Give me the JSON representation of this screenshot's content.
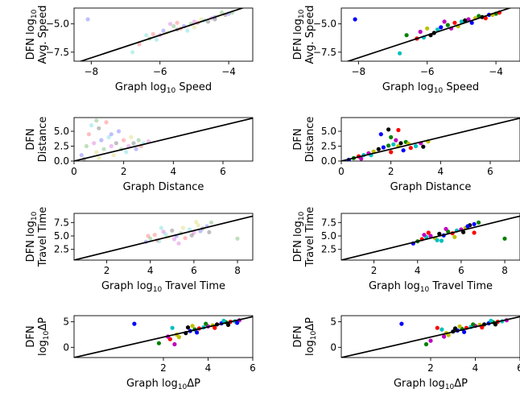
{
  "figure": {
    "background": "#ffffff",
    "point_colors": [
      "#0000ff",
      "#008000",
      "#ff0000",
      "#00bfbf",
      "#bf00bf",
      "#bfbf00",
      "#000000"
    ],
    "reference_line": "y = x",
    "left_column_style": "translucent markers (alpha ~0.25)",
    "right_column_style": "opaque markers"
  },
  "chart_data": [
    {
      "type": "scatter",
      "xlabel_main": "Graph log",
      "xlabel_sub": "10",
      "xlabel_tail": " Speed",
      "ylabel_lines": [
        "DFN log10",
        "Avg. Speed"
      ],
      "xlim": [
        -8.5,
        -3.3
      ],
      "ylim": [
        -8.3,
        -3.6
      ],
      "xticks": [
        -8,
        -6,
        -4
      ],
      "yticks": [
        -7.5,
        -5.0
      ],
      "xticklabels": [
        "−8",
        "−6",
        "−4"
      ],
      "yticklabels": [
        "−7.5",
        "−5.0"
      ],
      "alpha": 0.25,
      "grid": false,
      "legend": "none",
      "points": [
        [
          -8.1,
          -4.6
        ],
        [
          -6.3,
          -6.3
        ],
        [
          -6.6,
          -6.8
        ],
        [
          -6.8,
          -7.5
        ],
        [
          -6.0,
          -6.0
        ],
        [
          -5.8,
          -5.8
        ],
        [
          -5.5,
          -5.5
        ],
        [
          -5.3,
          -5.2
        ],
        [
          -5.1,
          -5.0
        ],
        [
          -4.9,
          -4.9
        ],
        [
          -4.7,
          -4.7
        ],
        [
          -4.5,
          -4.5
        ],
        [
          -4.3,
          -4.3
        ],
        [
          -4.1,
          -4.2
        ],
        [
          -5.9,
          -5.6
        ],
        [
          -5.6,
          -5.2
        ],
        [
          -5.4,
          -5.4
        ],
        [
          -5.2,
          -5.6
        ],
        [
          -5.0,
          -4.8
        ],
        [
          -4.8,
          -4.6
        ],
        [
          -4.6,
          -4.8
        ],
        [
          -4.4,
          -4.4
        ],
        [
          -4.2,
          -4.0
        ],
        [
          -6.2,
          -5.9
        ],
        [
          -6.4,
          -6.0
        ],
        [
          -5.7,
          -5.0
        ],
        [
          -5.0,
          -5.3
        ],
        [
          -4.4,
          -4.6
        ],
        [
          -4.0,
          -4.1
        ],
        [
          -3.9,
          -4.0
        ],
        [
          -5.5,
          -4.9
        ],
        [
          -6.1,
          -6.4
        ]
      ]
    },
    {
      "type": "scatter",
      "xlabel_main": "Graph log",
      "xlabel_sub": "10",
      "xlabel_tail": " Speed",
      "ylabel_lines": [
        "DFN log10",
        "Avg. Speed"
      ],
      "xlim": [
        -8.5,
        -3.3
      ],
      "ylim": [
        -8.3,
        -3.6
      ],
      "xticks": [
        -8,
        -6,
        -4
      ],
      "yticks": [
        -7.5,
        -5.0
      ],
      "xticklabels": [
        "−8",
        "−6",
        "−4"
      ],
      "yticklabels": [
        "−7.5",
        "−5.0"
      ],
      "alpha": 1.0,
      "grid": false,
      "legend": "none",
      "points": [
        [
          -8.1,
          -4.6
        ],
        [
          -6.6,
          -6.0
        ],
        [
          -6.3,
          -6.3
        ],
        [
          -6.8,
          -7.6
        ],
        [
          -6.2,
          -5.7
        ],
        [
          -6.0,
          -5.4
        ],
        [
          -5.9,
          -6.0
        ],
        [
          -5.6,
          -5.3
        ],
        [
          -5.4,
          -5.1
        ],
        [
          -5.2,
          -4.9
        ],
        [
          -5.0,
          -4.8
        ],
        [
          -4.8,
          -4.6
        ],
        [
          -4.6,
          -4.5
        ],
        [
          -4.4,
          -4.4
        ],
        [
          -4.2,
          -4.2
        ],
        [
          -4.0,
          -4.1
        ],
        [
          -3.9,
          -4.0
        ],
        [
          -5.7,
          -5.5
        ],
        [
          -5.3,
          -5.4
        ],
        [
          -5.1,
          -5.2
        ],
        [
          -4.9,
          -4.7
        ],
        [
          -4.7,
          -4.9
        ],
        [
          -4.5,
          -4.3
        ],
        [
          -4.3,
          -4.5
        ],
        [
          -6.1,
          -6.2
        ],
        [
          -5.5,
          -4.8
        ],
        [
          -4.1,
          -4.2
        ],
        [
          -5.8,
          -5.8
        ]
      ]
    },
    {
      "type": "scatter",
      "xlabel_main": "Graph Distance",
      "xlabel_sub": "",
      "xlabel_tail": "",
      "ylabel_lines": [
        "DFN",
        "Distance"
      ],
      "xlim": [
        0,
        7.2
      ],
      "ylim": [
        0,
        7.3
      ],
      "xticks": [
        0,
        2,
        4,
        6
      ],
      "yticks": [
        0.0,
        2.5,
        5.0
      ],
      "xticklabels": [
        "0",
        "2",
        "4",
        "6"
      ],
      "yticklabels": [
        "0.0",
        "2.5",
        "5.0"
      ],
      "alpha": 0.25,
      "grid": false,
      "legend": "none",
      "points": [
        [
          0.3,
          1.0
        ],
        [
          0.5,
          2.5
        ],
        [
          0.6,
          4.5
        ],
        [
          0.7,
          6.0
        ],
        [
          0.8,
          3.0
        ],
        [
          0.9,
          1.5
        ],
        [
          1.0,
          5.5
        ],
        [
          1.1,
          3.5
        ],
        [
          1.2,
          2.0
        ],
        [
          1.3,
          6.5
        ],
        [
          1.4,
          4.0
        ],
        [
          1.5,
          2.5
        ],
        [
          1.6,
          1.0
        ],
        [
          1.7,
          3.0
        ],
        [
          1.8,
          5.0
        ],
        [
          1.9,
          2.0
        ],
        [
          2.0,
          3.5
        ],
        [
          2.1,
          1.5
        ],
        [
          2.2,
          2.5
        ],
        [
          2.3,
          4.0
        ],
        [
          2.4,
          3.0
        ],
        [
          2.5,
          2.0
        ],
        [
          2.6,
          3.5
        ],
        [
          2.7,
          2.5
        ],
        [
          2.8,
          3.0
        ],
        [
          3.0,
          3.3
        ],
        [
          1.0,
          0.5
        ],
        [
          0.4,
          0.3
        ],
        [
          1.5,
          4.5
        ],
        [
          0.9,
          6.8
        ]
      ]
    },
    {
      "type": "scatter",
      "xlabel_main": "Graph Distance",
      "xlabel_sub": "",
      "xlabel_tail": "",
      "ylabel_lines": [
        "DFN",
        "Distance"
      ],
      "xlim": [
        0,
        7.2
      ],
      "ylim": [
        0,
        7.3
      ],
      "xticks": [
        0,
        2,
        4,
        6
      ],
      "yticks": [
        0.0,
        2.5,
        5.0
      ],
      "xticklabels": [
        "0",
        "2",
        "4",
        "6"
      ],
      "yticklabels": [
        "0.0",
        "2.5",
        "5.0"
      ],
      "alpha": 1.0,
      "grid": false,
      "legend": "none",
      "points": [
        [
          0.3,
          0.2
        ],
        [
          0.5,
          0.5
        ],
        [
          0.7,
          0.8
        ],
        [
          0.9,
          1.0
        ],
        [
          1.1,
          1.3
        ],
        [
          1.3,
          1.6
        ],
        [
          1.5,
          2.0
        ],
        [
          1.7,
          2.3
        ],
        [
          1.9,
          2.6
        ],
        [
          2.0,
          1.5
        ],
        [
          2.1,
          2.8
        ],
        [
          2.2,
          3.5
        ],
        [
          2.3,
          2.5
        ],
        [
          2.4,
          3.0
        ],
        [
          2.5,
          1.8
        ],
        [
          2.6,
          3.2
        ],
        [
          2.8,
          2.2
        ],
        [
          3.0,
          2.5
        ],
        [
          3.2,
          3.0
        ],
        [
          3.5,
          3.3
        ],
        [
          1.9,
          5.3
        ],
        [
          1.6,
          4.5
        ],
        [
          2.0,
          4.0
        ],
        [
          2.3,
          5.2
        ],
        [
          1.2,
          1.0
        ],
        [
          0.8,
          0.4
        ],
        [
          2.7,
          2.9
        ],
        [
          3.3,
          2.4
        ]
      ]
    },
    {
      "type": "scatter",
      "xlabel_main": "Graph log",
      "xlabel_sub": "10",
      "xlabel_tail": " Travel Time",
      "ylabel_lines": [
        "DFN log10",
        "Travel Time"
      ],
      "xlim": [
        0.5,
        8.7
      ],
      "ylim": [
        0.5,
        9.2
      ],
      "xticks": [
        2,
        4,
        6,
        8
      ],
      "yticks": [
        2.5,
        5.0,
        7.5
      ],
      "xticklabels": [
        "2",
        "4",
        "6",
        "8"
      ],
      "yticklabels": [
        "2.5",
        "5.0",
        "7.5"
      ],
      "alpha": 0.25,
      "grid": false,
      "legend": "none",
      "points": [
        [
          3.8,
          3.9
        ],
        [
          4.0,
          4.5
        ],
        [
          4.2,
          5.2
        ],
        [
          4.4,
          4.0
        ],
        [
          4.6,
          5.8
        ],
        [
          4.8,
          4.8
        ],
        [
          5.0,
          6.0
        ],
        [
          5.2,
          5.0
        ],
        [
          5.4,
          5.5
        ],
        [
          5.6,
          4.6
        ],
        [
          5.8,
          6.2
        ],
        [
          6.0,
          5.6
        ],
        [
          6.2,
          7.0
        ],
        [
          6.4,
          6.4
        ],
        [
          6.6,
          6.8
        ],
        [
          6.8,
          7.5
        ],
        [
          4.3,
          4.2
        ],
        [
          4.7,
          5.3
        ],
        [
          5.1,
          4.4
        ],
        [
          5.5,
          6.5
        ],
        [
          5.9,
          5.1
        ],
        [
          6.3,
          5.9
        ],
        [
          8.0,
          4.5
        ],
        [
          3.9,
          5.0
        ],
        [
          4.5,
          6.5
        ],
        [
          5.3,
          3.6
        ],
        [
          6.1,
          7.6
        ],
        [
          6.7,
          5.7
        ]
      ]
    },
    {
      "type": "scatter",
      "xlabel_main": "Graph log",
      "xlabel_sub": "10",
      "xlabel_tail": " Travel Time",
      "ylabel_lines": [
        "DFN log10",
        "Travel Time"
      ],
      "xlim": [
        0.5,
        8.7
      ],
      "ylim": [
        0.5,
        9.2
      ],
      "xticks": [
        2,
        4,
        6,
        8
      ],
      "yticks": [
        2.5,
        5.0,
        7.5
      ],
      "xticklabels": [
        "2",
        "4",
        "6",
        "8"
      ],
      "yticklabels": [
        "2.5",
        "5.0",
        "7.5"
      ],
      "alpha": 1.0,
      "grid": false,
      "legend": "none",
      "points": [
        [
          3.8,
          3.6
        ],
        [
          4.0,
          4.0
        ],
        [
          4.2,
          4.4
        ],
        [
          4.4,
          4.8
        ],
        [
          4.6,
          5.0
        ],
        [
          4.8,
          4.6
        ],
        [
          5.0,
          5.4
        ],
        [
          5.2,
          5.1
        ],
        [
          5.4,
          5.8
        ],
        [
          5.6,
          5.5
        ],
        [
          5.8,
          6.0
        ],
        [
          6.0,
          6.2
        ],
        [
          6.2,
          6.5
        ],
        [
          6.4,
          7.0
        ],
        [
          6.6,
          7.2
        ],
        [
          6.8,
          7.5
        ],
        [
          4.5,
          5.6
        ],
        [
          4.9,
          4.2
        ],
        [
          5.3,
          6.3
        ],
        [
          5.7,
          4.8
        ],
        [
          6.1,
          5.7
        ],
        [
          6.3,
          6.8
        ],
        [
          8.0,
          4.5
        ],
        [
          6.6,
          5.6
        ],
        [
          5.1,
          4.1
        ],
        [
          4.3,
          5.2
        ]
      ]
    },
    {
      "type": "scatter",
      "xlabel_main": "Graph log",
      "xlabel_sub": "10",
      "xlabel_tail": "ΔP",
      "ylabel_lines": [
        "DFN",
        "log10ΔP"
      ],
      "xlim": [
        -2,
        6
      ],
      "ylim": [
        -2,
        6.2
      ],
      "xticks": [
        2,
        4,
        6
      ],
      "yticks": [
        0,
        5
      ],
      "xticklabels": [
        "2",
        "4",
        "6"
      ],
      "yticklabels": [
        "0",
        "5"
      ],
      "alpha": 1.0,
      "grid": false,
      "legend": "none",
      "points": [
        [
          0.7,
          4.6
        ],
        [
          1.8,
          0.8
        ],
        [
          2.3,
          1.6
        ],
        [
          2.4,
          3.8
        ],
        [
          2.5,
          0.6
        ],
        [
          2.7,
          2.0
        ],
        [
          3.0,
          2.8
        ],
        [
          3.2,
          3.2
        ],
        [
          3.4,
          3.5
        ],
        [
          3.6,
          3.7
        ],
        [
          3.8,
          3.9
        ],
        [
          4.0,
          4.1
        ],
        [
          4.2,
          4.3
        ],
        [
          4.4,
          4.5
        ],
        [
          4.6,
          4.7
        ],
        [
          4.8,
          4.9
        ],
        [
          5.0,
          5.0
        ],
        [
          5.2,
          5.1
        ],
        [
          5.4,
          5.3
        ],
        [
          2.6,
          2.5
        ],
        [
          3.1,
          3.9
        ],
        [
          3.5,
          2.9
        ],
        [
          3.9,
          4.6
        ],
        [
          4.3,
          3.8
        ],
        [
          4.7,
          5.2
        ],
        [
          2.2,
          2.1
        ],
        [
          3.3,
          4.2
        ],
        [
          4.9,
          4.4
        ],
        [
          5.3,
          4.8
        ]
      ]
    },
    {
      "type": "scatter",
      "xlabel_main": "Graph log",
      "xlabel_sub": "10",
      "xlabel_tail": "ΔP",
      "ylabel_lines": [
        "DFN",
        "log10ΔP"
      ],
      "xlim": [
        -2,
        6
      ],
      "ylim": [
        -2,
        6.2
      ],
      "xticks": [
        2,
        4,
        6
      ],
      "yticks": [
        0,
        5
      ],
      "xticklabels": [
        "2",
        "4",
        "6"
      ],
      "yticklabels": [
        "0",
        "5"
      ],
      "alpha": 1.0,
      "grid": false,
      "legend": "none",
      "points": [
        [
          0.7,
          4.6
        ],
        [
          1.8,
          0.6
        ],
        [
          2.3,
          3.8
        ],
        [
          2.5,
          3.5
        ],
        [
          2.6,
          2.1
        ],
        [
          2.8,
          2.4
        ],
        [
          3.0,
          3.1
        ],
        [
          3.2,
          3.3
        ],
        [
          3.4,
          3.6
        ],
        [
          3.6,
          3.8
        ],
        [
          3.8,
          4.0
        ],
        [
          4.0,
          4.2
        ],
        [
          4.2,
          4.4
        ],
        [
          4.4,
          4.5
        ],
        [
          4.6,
          4.7
        ],
        [
          4.8,
          4.9
        ],
        [
          5.0,
          5.0
        ],
        [
          5.2,
          5.1
        ],
        [
          5.4,
          5.3
        ],
        [
          2.7,
          2.8
        ],
        [
          3.1,
          3.7
        ],
        [
          3.5,
          3.0
        ],
        [
          3.9,
          4.5
        ],
        [
          4.3,
          3.9
        ],
        [
          4.7,
          5.2
        ],
        [
          2.0,
          1.3
        ],
        [
          3.3,
          4.1
        ],
        [
          4.9,
          4.5
        ]
      ]
    }
  ]
}
